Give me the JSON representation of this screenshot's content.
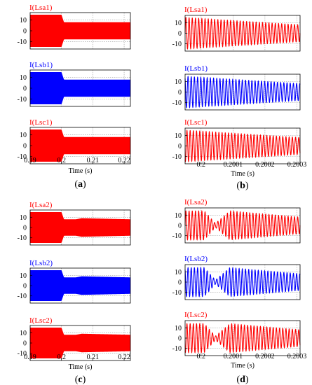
{
  "colors": {
    "red": "#ff0000",
    "blue": "#0000ff",
    "axis": "#000000",
    "grid": "#9a9a9a"
  },
  "panels": [
    {
      "caption": "(a)",
      "xlabel": "Time (s)",
      "xlim": [
        0.19,
        0.222
      ],
      "xticks": [
        "0.19",
        "0.2",
        "0.21",
        "0.22"
      ],
      "xtick_values": [
        0.19,
        0.2,
        0.21,
        0.22
      ],
      "kind": "envelope",
      "subplots": [
        {
          "title": "I(Lsa1)",
          "color": "#ff0000",
          "ylim": [
            -17,
            17
          ],
          "yticks": [
            "10",
            "0",
            "-10"
          ],
          "ytick_values": [
            10,
            0,
            -10
          ],
          "env": [
            {
              "t": 0.19,
              "a": 15
            },
            {
              "t": 0.2,
              "a": 15
            },
            {
              "t": 0.2008,
              "a": 8
            },
            {
              "t": 0.222,
              "a": 8
            }
          ]
        },
        {
          "title": "I(Lsb1)",
          "color": "#0000ff",
          "ylim": [
            -17,
            17
          ],
          "yticks": [
            "10",
            "0",
            "-10"
          ],
          "ytick_values": [
            10,
            0,
            -10
          ],
          "env": [
            {
              "t": 0.19,
              "a": 15
            },
            {
              "t": 0.2,
              "a": 15
            },
            {
              "t": 0.2008,
              "a": 8
            },
            {
              "t": 0.222,
              "a": 8
            }
          ]
        },
        {
          "title": "I(Lsc1)",
          "color": "#ff0000",
          "ylim": [
            -17,
            17
          ],
          "yticks": [
            "10",
            "0",
            "-10"
          ],
          "ytick_values": [
            10,
            0,
            -10
          ],
          "env": [
            {
              "t": 0.19,
              "a": 15
            },
            {
              "t": 0.2,
              "a": 15
            },
            {
              "t": 0.2008,
              "a": 8
            },
            {
              "t": 0.222,
              "a": 8
            }
          ]
        }
      ]
    },
    {
      "caption": "(b)",
      "xlabel": "Time (s)",
      "xlim": [
        0.19995,
        0.20031
      ],
      "xticks": [
        "0.2",
        "0.2001",
        "0.2002",
        "0.2003"
      ],
      "xtick_values": [
        0.2,
        0.2001,
        0.2002,
        0.2003
      ],
      "kind": "wave",
      "cycles": 36,
      "subplots": [
        {
          "title": "I(Lsa1)",
          "color": "#ff0000",
          "ylim": [
            -17,
            17
          ],
          "yticks": [
            "10",
            "0",
            "-10"
          ],
          "ytick_values": [
            10,
            0,
            -10
          ],
          "phase": 0,
          "env": [
            {
              "t": 0.19995,
              "a": 15
            },
            {
              "t": 0.20031,
              "a": 8
            }
          ]
        },
        {
          "title": "I(Lsb1)",
          "color": "#0000ff",
          "ylim": [
            -17,
            17
          ],
          "yticks": [
            "10",
            "0",
            "-10"
          ],
          "ytick_values": [
            10,
            0,
            -10
          ],
          "phase": 2.09,
          "env": [
            {
              "t": 0.19995,
              "a": 15
            },
            {
              "t": 0.20031,
              "a": 8
            }
          ]
        },
        {
          "title": "I(Lsc1)",
          "color": "#ff0000",
          "ylim": [
            -17,
            17
          ],
          "yticks": [
            "10",
            "0",
            "-10"
          ],
          "ytick_values": [
            10,
            0,
            -10
          ],
          "phase": 4.19,
          "env": [
            {
              "t": 0.19995,
              "a": 15
            },
            {
              "t": 0.20031,
              "a": 8
            }
          ]
        }
      ]
    },
    {
      "caption": "(c)",
      "xlabel": "Time (s)",
      "xlim": [
        0.19,
        0.222
      ],
      "xticks": [
        "0.19",
        "0.2",
        "0.21",
        "0.22"
      ],
      "xtick_values": [
        0.19,
        0.2,
        0.21,
        0.22
      ],
      "kind": "envelope",
      "subplots": [
        {
          "title": "I(Lsa2)",
          "color": "#ff0000",
          "ylim": [
            -17,
            17
          ],
          "yticks": [
            "10",
            "0",
            "-10"
          ],
          "ytick_values": [
            10,
            0,
            -10
          ],
          "env": [
            {
              "t": 0.19,
              "a": 15
            },
            {
              "t": 0.2,
              "a": 15
            },
            {
              "t": 0.2008,
              "a": 8
            },
            {
              "t": 0.2045,
              "a": 8
            },
            {
              "t": 0.2065,
              "a": 9
            },
            {
              "t": 0.222,
              "a": 8
            }
          ]
        },
        {
          "title": "I(Lsb2)",
          "color": "#0000ff",
          "ylim": [
            -17,
            17
          ],
          "yticks": [
            "10",
            "0",
            "-10"
          ],
          "ytick_values": [
            10,
            0,
            -10
          ],
          "env": [
            {
              "t": 0.19,
              "a": 15
            },
            {
              "t": 0.2,
              "a": 15
            },
            {
              "t": 0.2008,
              "a": 8
            },
            {
              "t": 0.2045,
              "a": 8
            },
            {
              "t": 0.2065,
              "a": 9
            },
            {
              "t": 0.222,
              "a": 8
            }
          ]
        },
        {
          "title": "I(Lsc2)",
          "color": "#ff0000",
          "ylim": [
            -17,
            17
          ],
          "yticks": [
            "10",
            "0",
            "-10"
          ],
          "ytick_values": [
            10,
            0,
            -10
          ],
          "env": [
            {
              "t": 0.19,
              "a": 15
            },
            {
              "t": 0.2,
              "a": 15
            },
            {
              "t": 0.2008,
              "a": 8
            },
            {
              "t": 0.2045,
              "a": 8
            },
            {
              "t": 0.2065,
              "a": 9
            },
            {
              "t": 0.222,
              "a": 8
            }
          ]
        }
      ]
    },
    {
      "caption": "(d)",
      "xlabel": "Time (s)",
      "xlim": [
        0.19995,
        0.20031
      ],
      "xticks": [
        "0.2",
        "0.2001",
        "0.2002",
        "0.2003"
      ],
      "xtick_values": [
        0.2,
        0.2001,
        0.2002,
        0.2003
      ],
      "kind": "wave",
      "cycles": 36,
      "subplots": [
        {
          "title": "I(Lsa2)",
          "color": "#ff0000",
          "ylim": [
            -17,
            17
          ],
          "yticks": [
            "10",
            "0",
            "-10"
          ],
          "ytick_values": [
            10,
            0,
            -10
          ],
          "phase": 0,
          "env": [
            {
              "t": 0.19995,
              "a": 14
            },
            {
              "t": 0.20001,
              "a": 14
            },
            {
              "t": 0.200045,
              "a": 2
            },
            {
              "t": 0.20009,
              "a": 14
            },
            {
              "t": 0.20031,
              "a": 8
            }
          ]
        },
        {
          "title": "I(Lsb2)",
          "color": "#0000ff",
          "ylim": [
            -17,
            17
          ],
          "yticks": [
            "10",
            "0",
            "-10"
          ],
          "ytick_values": [
            10,
            0,
            -10
          ],
          "phase": 2.09,
          "env": [
            {
              "t": 0.19995,
              "a": 14
            },
            {
              "t": 0.20001,
              "a": 14
            },
            {
              "t": 0.200045,
              "a": 2
            },
            {
              "t": 0.20009,
              "a": 14
            },
            {
              "t": 0.20031,
              "a": 8
            }
          ]
        },
        {
          "title": "I(Lsc2)",
          "color": "#ff0000",
          "ylim": [
            -17,
            17
          ],
          "yticks": [
            "10",
            "0",
            "-10"
          ],
          "ytick_values": [
            10,
            0,
            -10
          ],
          "phase": 4.19,
          "env": [
            {
              "t": 0.19995,
              "a": 14
            },
            {
              "t": 0.20001,
              "a": 14
            },
            {
              "t": 0.200045,
              "a": 2
            },
            {
              "t": 0.20009,
              "a": 14
            },
            {
              "t": 0.20031,
              "a": 8
            }
          ]
        }
      ]
    }
  ]
}
